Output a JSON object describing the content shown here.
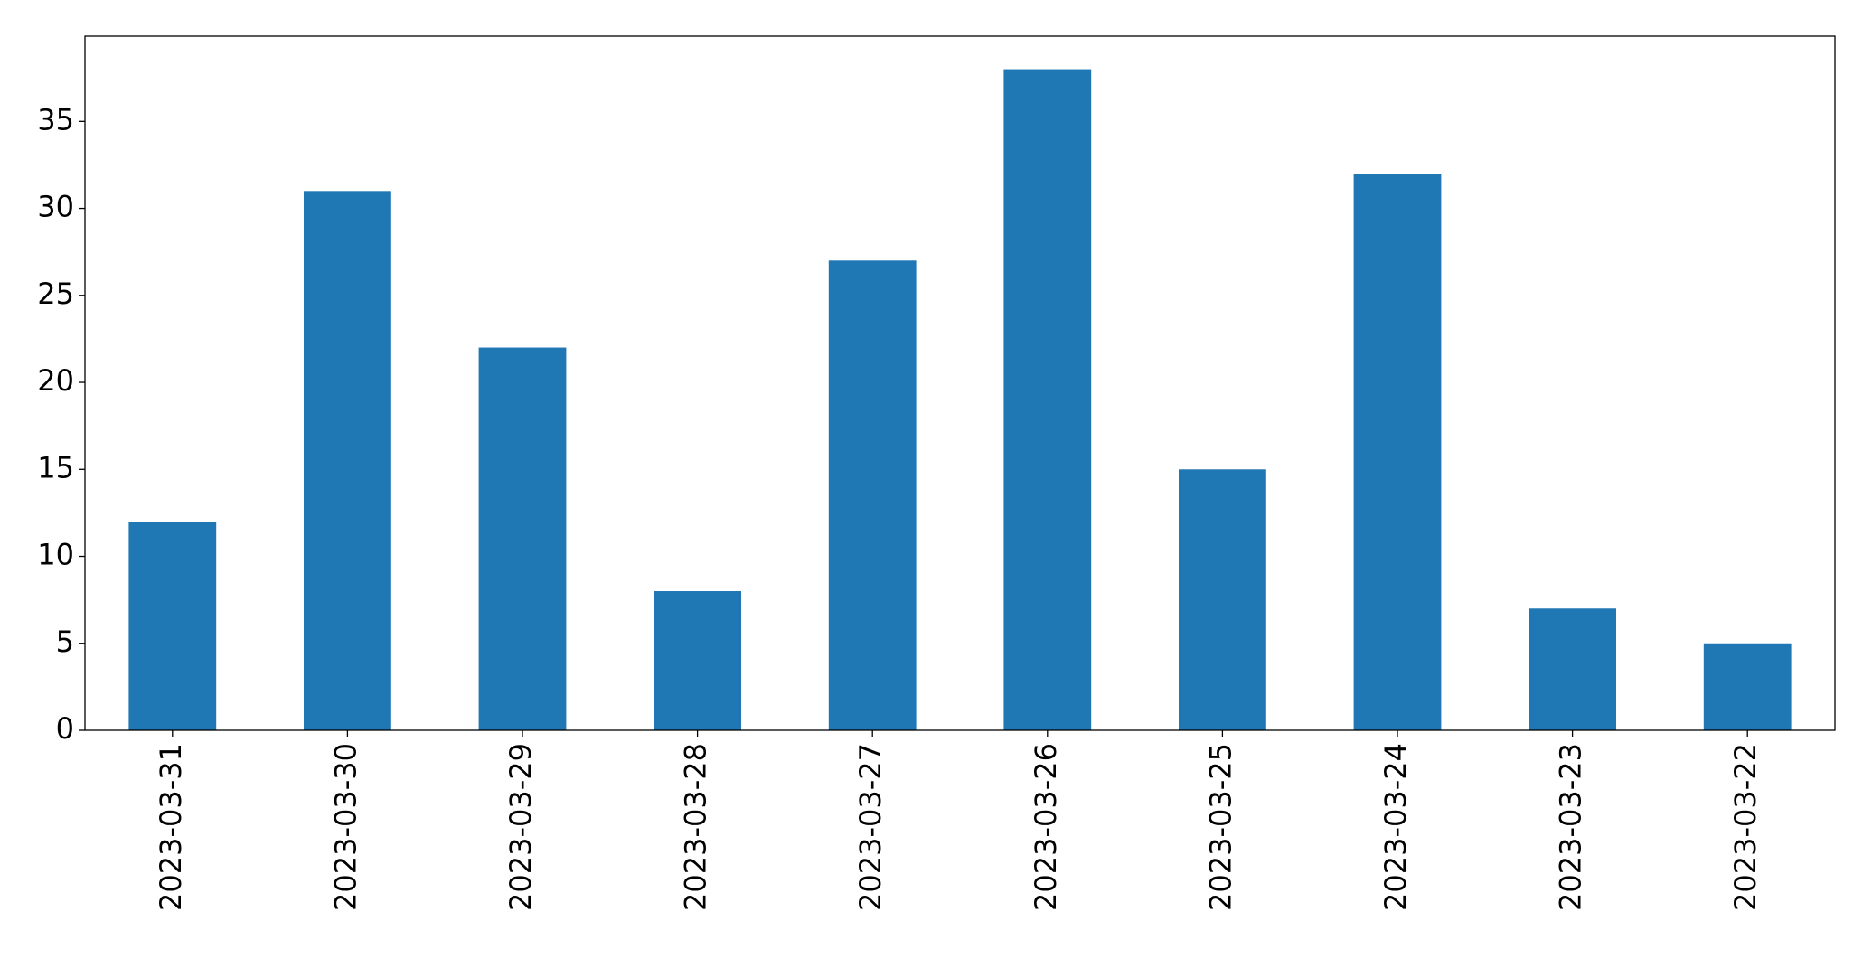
{
  "chart_data": {
    "type": "bar",
    "categories": [
      "2023-03-31",
      "2023-03-30",
      "2023-03-29",
      "2023-03-28",
      "2023-03-27",
      "2023-03-26",
      "2023-03-25",
      "2023-03-24",
      "2023-03-23",
      "2023-03-22"
    ],
    "values": [
      12,
      31,
      22,
      8,
      27,
      38,
      15,
      32,
      7,
      5
    ],
    "color": "#1f77b4",
    "ylim": [
      0,
      39.9
    ],
    "yticks": [
      0,
      5,
      10,
      15,
      20,
      25,
      30,
      35
    ],
    "grid": false
  }
}
